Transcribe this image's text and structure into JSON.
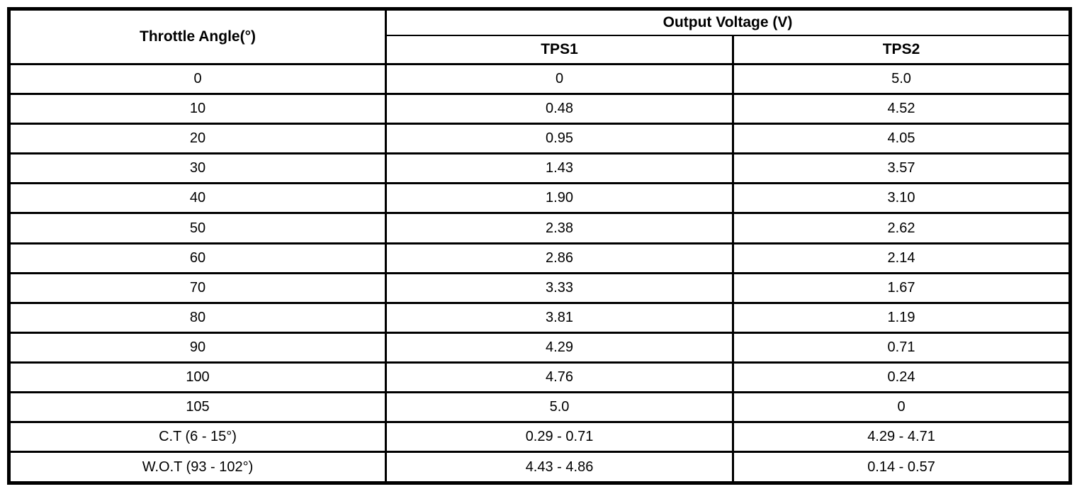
{
  "table": {
    "col1_header": "Throttle Angle(°)",
    "group_header": "Output Voltage (V)",
    "sub_headers": {
      "tps1": "TPS1",
      "tps2": "TPS2"
    },
    "rows": [
      [
        "0",
        "0",
        "5.0"
      ],
      [
        "10",
        "0.48",
        "4.52"
      ],
      [
        "20",
        "0.95",
        "4.05"
      ],
      [
        "30",
        "1.43",
        "3.57"
      ],
      [
        "40",
        "1.90",
        "3.10"
      ],
      [
        "50",
        "2.38",
        "2.62"
      ],
      [
        "60",
        "2.86",
        "2.14"
      ],
      [
        "70",
        "3.33",
        "1.67"
      ],
      [
        "80",
        "3.81",
        "1.19"
      ],
      [
        "90",
        "4.29",
        "0.71"
      ],
      [
        "100",
        "4.76",
        "0.24"
      ],
      [
        "105",
        "5.0",
        "0"
      ],
      [
        "C.T (6 - 15°)",
        "0.29 - 0.71",
        "4.29 - 4.71"
      ],
      [
        "W.O.T (93 - 102°)",
        "4.43 - 4.86",
        "0.14 - 0.57"
      ]
    ]
  },
  "colors": {
    "border": "#000000",
    "background": "#ffffff",
    "text": "#000000"
  },
  "chart_data": {
    "type": "table",
    "title": "Output Voltage (V)",
    "categories": [
      "0",
      "10",
      "20",
      "30",
      "40",
      "50",
      "60",
      "70",
      "80",
      "90",
      "100",
      "105",
      "C.T (6 - 15°)",
      "W.O.T (93 - 102°)"
    ],
    "series": [
      {
        "name": "TPS1",
        "values": [
          "0",
          "0.48",
          "0.95",
          "1.43",
          "1.90",
          "2.38",
          "2.86",
          "3.33",
          "3.81",
          "4.29",
          "4.76",
          "5.0",
          "0.29 - 0.71",
          "4.43 - 4.86"
        ]
      },
      {
        "name": "TPS2",
        "values": [
          "5.0",
          "4.52",
          "4.05",
          "3.57",
          "3.10",
          "2.62",
          "2.14",
          "1.67",
          "1.19",
          "0.71",
          "0.24",
          "0",
          "4.29 - 4.71",
          "0.14 - 0.57"
        ]
      }
    ],
    "xlabel": "Throttle Angle(°)",
    "ylabel": "Output Voltage (V)"
  }
}
